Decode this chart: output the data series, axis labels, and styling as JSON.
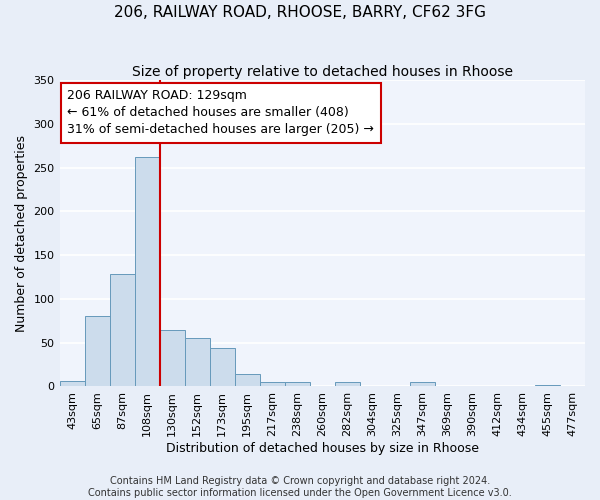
{
  "title": "206, RAILWAY ROAD, RHOOSE, BARRY, CF62 3FG",
  "subtitle": "Size of property relative to detached houses in Rhoose",
  "xlabel": "Distribution of detached houses by size in Rhoose",
  "ylabel": "Number of detached properties",
  "bar_labels": [
    "43sqm",
    "65sqm",
    "87sqm",
    "108sqm",
    "130sqm",
    "152sqm",
    "173sqm",
    "195sqm",
    "217sqm",
    "238sqm",
    "260sqm",
    "282sqm",
    "304sqm",
    "325sqm",
    "347sqm",
    "369sqm",
    "390sqm",
    "412sqm",
    "434sqm",
    "455sqm",
    "477sqm"
  ],
  "bar_values": [
    6,
    81,
    129,
    262,
    65,
    55,
    44,
    14,
    5,
    5,
    0,
    5,
    0,
    0,
    5,
    0,
    0,
    0,
    0,
    2,
    0
  ],
  "bar_color": "#ccdcec",
  "bar_edge_color": "#6699bb",
  "vline_x_index": 4,
  "vline_color": "#cc0000",
  "annotation_lines": [
    "206 RAILWAY ROAD: 129sqm",
    "← 61% of detached houses are smaller (408)",
    "31% of semi-detached houses are larger (205) →"
  ],
  "annotation_box_facecolor": "#ffffff",
  "annotation_box_edgecolor": "#cc0000",
  "ylim": [
    0,
    350
  ],
  "yticks": [
    0,
    50,
    100,
    150,
    200,
    250,
    300,
    350
  ],
  "background_color": "#e8eef8",
  "plot_background_color": "#f0f4fc",
  "grid_color": "#ffffff",
  "title_fontsize": 11,
  "subtitle_fontsize": 10,
  "axis_label_fontsize": 9,
  "tick_fontsize": 8,
  "annotation_fontsize": 9,
  "footer_fontsize": 7,
  "footer_lines": [
    "Contains HM Land Registry data © Crown copyright and database right 2024.",
    "Contains public sector information licensed under the Open Government Licence v3.0."
  ]
}
